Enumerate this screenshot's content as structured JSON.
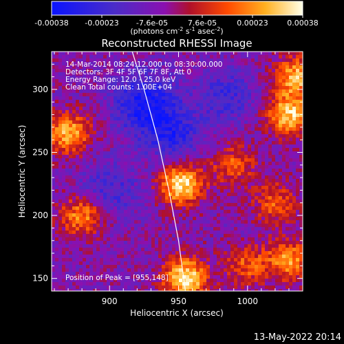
{
  "chart_data": {
    "type": "heatmap",
    "title": "Reconstructed RHESSI Image",
    "xlabel": "Heliocentric X (arcsec)",
    "ylabel": "Heliocentric Y (arcsec)",
    "xlim": [
      858,
      1040
    ],
    "ylim": [
      140,
      330
    ],
    "xticks": [
      900,
      950,
      1000
    ],
    "yticks": [
      150,
      200,
      250,
      300
    ],
    "colorbar": {
      "ticks": [
        "-0.00038",
        "-0.00023",
        "-7.6e-05",
        "7.6e-05",
        "0.00023",
        "0.00038"
      ],
      "range": [
        -0.00038,
        0.00038
      ],
      "unit_label": "(photons cm",
      "unit_exp1": "-2",
      "unit_mid": " s",
      "unit_exp2": "-1",
      "unit_mid2": " asec",
      "unit_exp3": "-2",
      "unit_end": ")"
    },
    "annotations": [
      "14-Mar-2014 08:24:12.000 to 08:30:00.000",
      "Detectors: 3F 4F 5F 6F 7F 8F, Att 0",
      "Energy Range: 12.0 - 25.0 keV",
      "Clean     Total counts: 1.00E+04"
    ],
    "peak_label": "Position of Peak = [955,148]",
    "peak": [
      955,
      148
    ],
    "sources": [
      {
        "x": 952,
        "y": 225,
        "strength": 1.0
      },
      {
        "x": 955,
        "y": 150,
        "strength": 1.0
      },
      {
        "x": 1030,
        "y": 280,
        "strength": 0.9
      },
      {
        "x": 1035,
        "y": 310,
        "strength": 0.8
      },
      {
        "x": 870,
        "y": 265,
        "strength": 0.8
      },
      {
        "x": 880,
        "y": 200,
        "strength": 0.7
      },
      {
        "x": 1030,
        "y": 165,
        "strength": 0.7
      },
      {
        "x": 990,
        "y": 240,
        "strength": 0.5
      },
      {
        "x": 1000,
        "y": 160,
        "strength": 0.5
      },
      {
        "x": 1020,
        "y": 210,
        "strength": 0.5
      }
    ],
    "negative_regions": [
      {
        "x": 925,
        "y": 290,
        "strength": 0.9
      },
      {
        "x": 945,
        "y": 265,
        "strength": 0.7
      },
      {
        "x": 900,
        "y": 220,
        "strength": 0.5
      },
      {
        "x": 985,
        "y": 295,
        "strength": 0.5
      }
    ],
    "limb_curve": [
      [
        915,
        335
      ],
      [
        925,
        300
      ],
      [
        935,
        260
      ],
      [
        943,
        220
      ],
      [
        950,
        180
      ],
      [
        955,
        140
      ]
    ],
    "footer_date": "13-May-2022 20:14"
  }
}
